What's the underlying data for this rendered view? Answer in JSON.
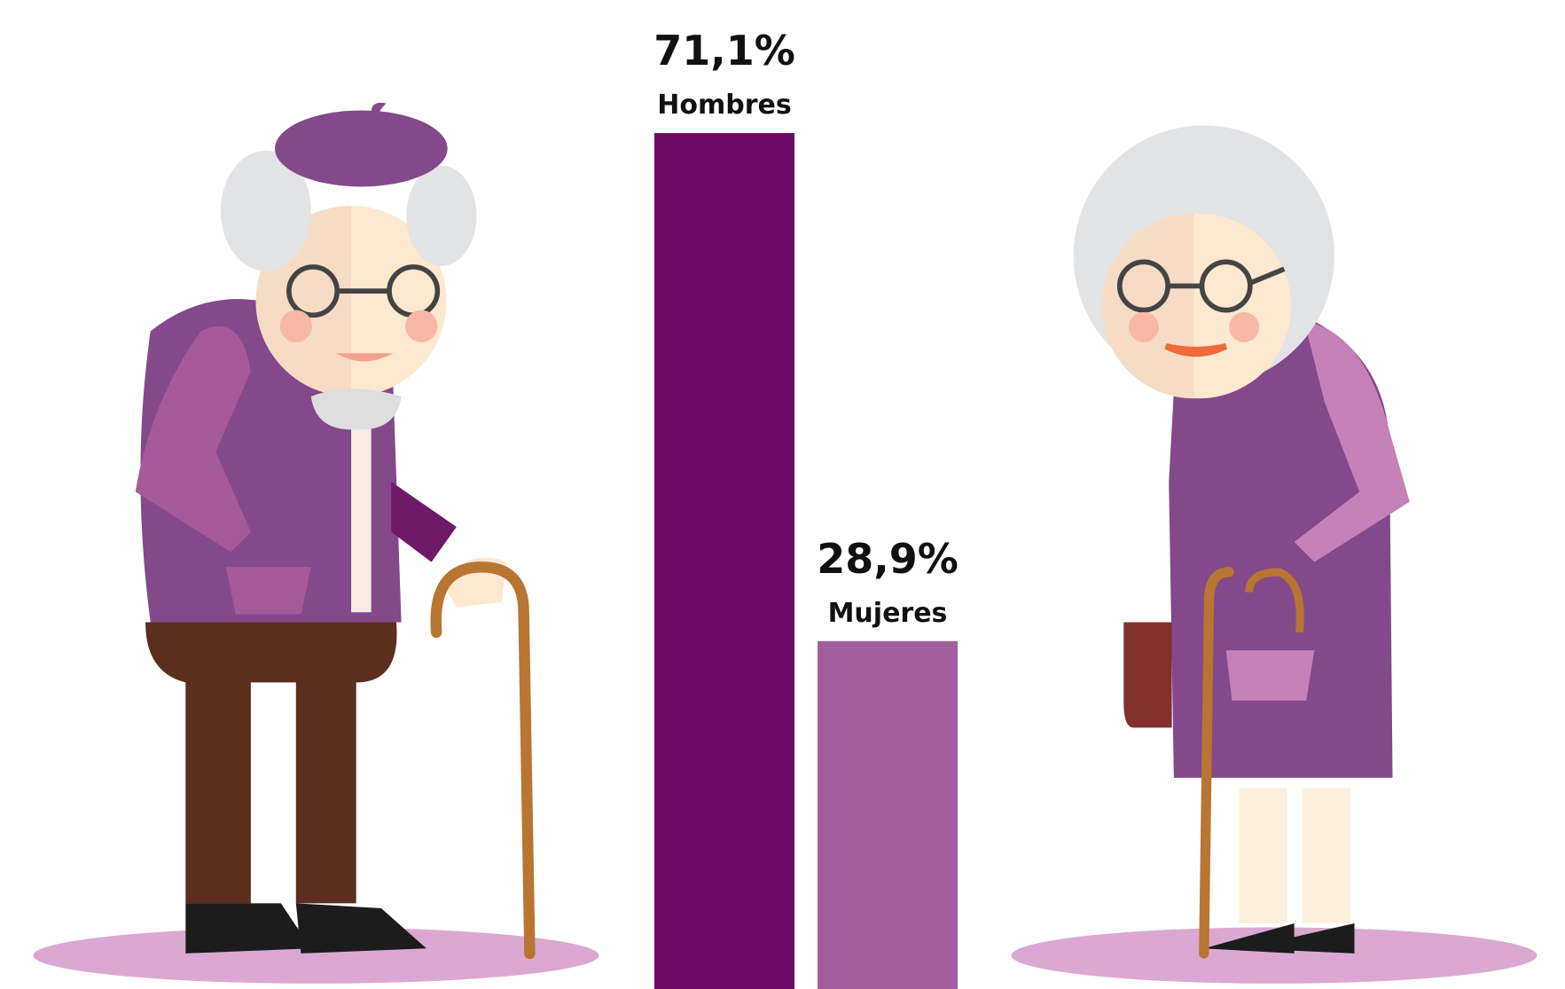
{
  "chart_data": {
    "type": "bar",
    "categories": [
      "Hombres",
      "Mujeres"
    ],
    "values": [
      71.1,
      28.9
    ],
    "value_labels": [
      "71,1%",
      "28,9%"
    ],
    "colors": [
      "#6e0b66",
      "#a35e9e"
    ]
  }
}
